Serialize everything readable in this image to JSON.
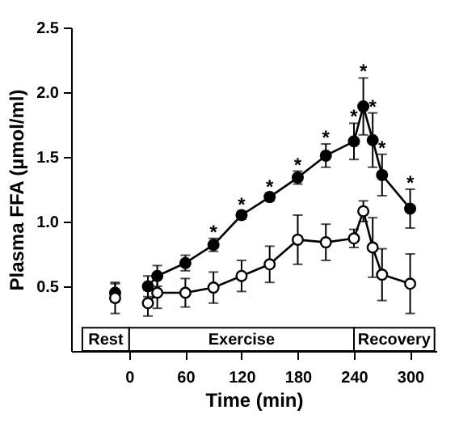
{
  "chart_data": {
    "type": "line",
    "xlabel": "Time  (min)",
    "ylabel": "Plasma FFA  (µmol/ml)",
    "x": [
      20,
      30,
      60,
      90,
      120,
      150,
      180,
      210,
      240,
      250,
      260,
      270,
      300
    ],
    "series": [
      {
        "color": "#000000",
        "marker": "circle",
        "values": [
          0.5,
          0.58,
          0.68,
          0.82,
          1.05,
          1.19,
          1.34,
          1.51,
          1.62,
          1.89,
          1.63,
          1.36,
          1.1
        ],
        "errors": [
          0.08,
          0.08,
          0.06,
          0.05,
          0.03,
          0.03,
          0.05,
          0.09,
          0.14,
          0.22,
          0.21,
          0.16,
          0.15
        ]
      },
      {
        "color": "#ffffff",
        "marker": "circle",
        "values": [
          0.37,
          0.45,
          0.45,
          0.49,
          0.58,
          0.67,
          0.86,
          0.84,
          0.87,
          1.08,
          0.8,
          0.59,
          0.52
        ],
        "errors": [
          0.1,
          0.12,
          0.11,
          0.12,
          0.12,
          0.14,
          0.19,
          0.14,
          0.07,
          0.08,
          0.23,
          0.2,
          0.23
        ]
      },
      {
        "type": "scatter",
        "color": "#000000",
        "marker": "circle",
        "x": [
          -15
        ],
        "values": [
          0.45
        ],
        "errors": [
          0.07
        ]
      },
      {
        "type": "scatter",
        "color": "#ffffff",
        "marker": "circle",
        "x": [
          -15
        ],
        "values": [
          0.41
        ],
        "errors": [
          0.12
        ]
      }
    ],
    "xlim": [
      -62,
      328
    ],
    "ylim": [
      0,
      2.5
    ],
    "xticks": [
      0,
      60,
      120,
      180,
      240,
      300
    ],
    "yticks": [
      0.5,
      {
        "value": 1,
        "label": "1.0"
      },
      1.5,
      {
        "value": 2,
        "label": "2.0"
      },
      2.5
    ],
    "bands": [
      {
        "axis": "x",
        "from": -50,
        "to": 0,
        "label": "Rest"
      },
      {
        "axis": "x",
        "from": 0,
        "to": 240,
        "label": "Exercise"
      },
      {
        "axis": "x",
        "from": 240,
        "to": 326,
        "label": "Recovery"
      }
    ],
    "annotations": [
      {
        "text": "*",
        "x": 90,
        "y": 0.87
      },
      {
        "text": "*",
        "x": 120,
        "y": 1.08
      },
      {
        "text": "*",
        "x": 150,
        "y": 1.22
      },
      {
        "text": "*",
        "x": 180,
        "y": 1.39
      },
      {
        "text": "*",
        "x": 210,
        "y": 1.6
      },
      {
        "text": "*",
        "x": 240,
        "y": 1.76
      },
      {
        "text": "*",
        "x": 250,
        "y": 2.11
      },
      {
        "text": "*",
        "x": 260,
        "y": 1.84
      },
      {
        "text": "*",
        "x": 270,
        "y": 1.52
      },
      {
        "text": "*",
        "x": 300,
        "y": 1.25
      }
    ],
    "grid": false
  }
}
